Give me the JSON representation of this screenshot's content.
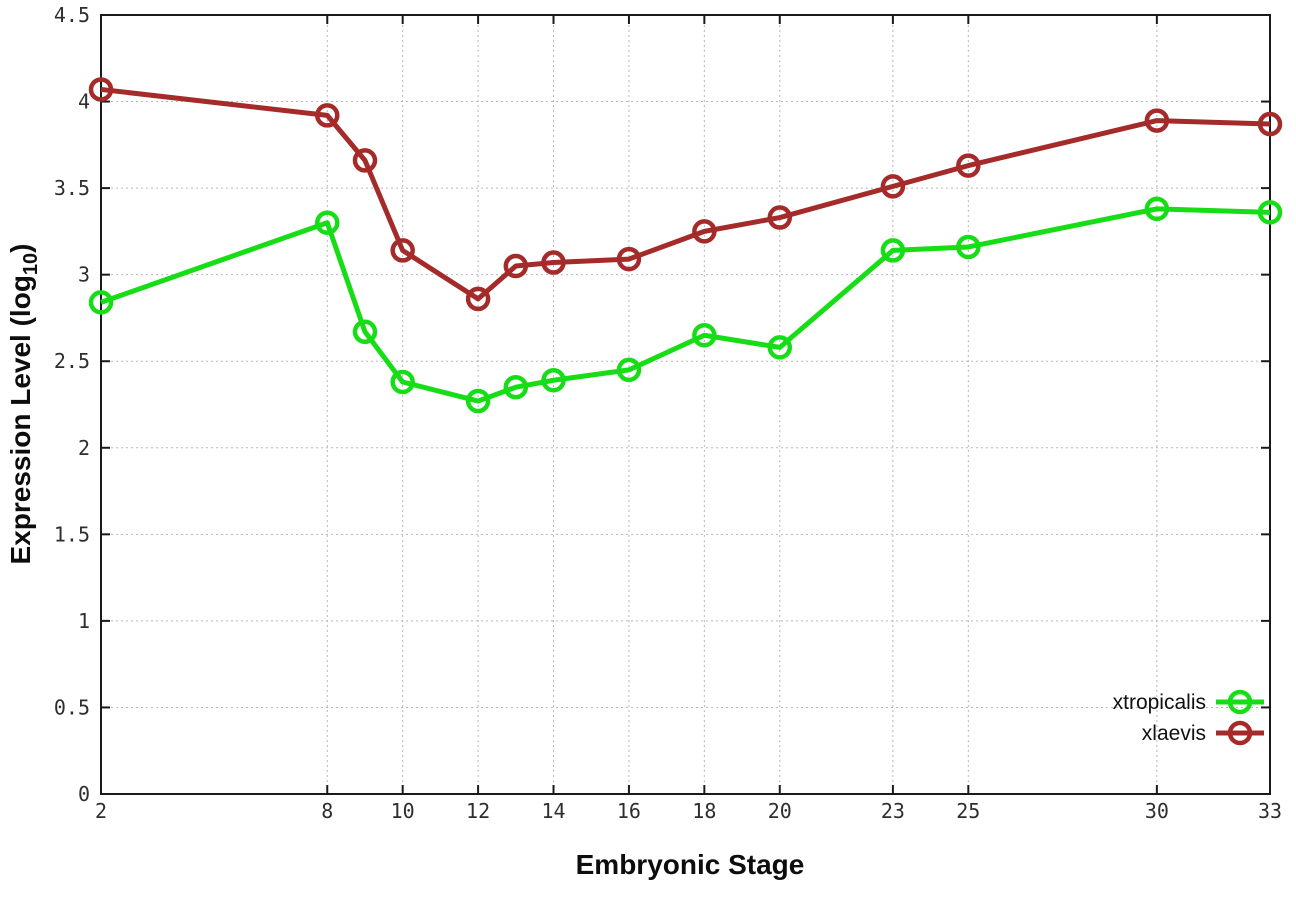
{
  "chart_data": {
    "type": "line",
    "title": "",
    "xlabel": "Embryonic Stage",
    "ylabel": "Expression Level (log10)",
    "ylabel_prefix": "Expression Level (log",
    "ylabel_sub": "10",
    "ylabel_suffix": ")",
    "xlim": [
      2,
      33
    ],
    "ylim": [
      0,
      4.5
    ],
    "x_ticks": [
      2,
      8,
      10,
      12,
      14,
      16,
      18,
      20,
      23,
      25,
      30,
      33
    ],
    "y_ticks": [
      0,
      0.5,
      1,
      1.5,
      2,
      2.5,
      3,
      3.5,
      4,
      4.5
    ],
    "grid": true,
    "legend_position": "bottom-right",
    "x": [
      2,
      8,
      9,
      10,
      12,
      13,
      14,
      16,
      18,
      20,
      23,
      25,
      30,
      33
    ],
    "series": [
      {
        "name": "xtropicalis",
        "color": "#16dd16",
        "marker": "open-circle",
        "values": [
          2.84,
          3.3,
          2.67,
          2.38,
          2.27,
          2.35,
          2.39,
          2.45,
          2.65,
          2.58,
          3.14,
          3.16,
          3.38,
          3.36
        ]
      },
      {
        "name": "xlaevis",
        "color": "#a52a2a",
        "marker": "open-circle",
        "values": [
          4.07,
          3.92,
          3.66,
          3.14,
          2.86,
          3.05,
          3.07,
          3.09,
          3.25,
          3.33,
          3.51,
          3.63,
          3.89,
          3.87
        ]
      }
    ],
    "colors": {
      "frame": "#1a1a1a",
      "grid": "#b8b8b8",
      "tick_label": "#2e2e2e"
    }
  }
}
